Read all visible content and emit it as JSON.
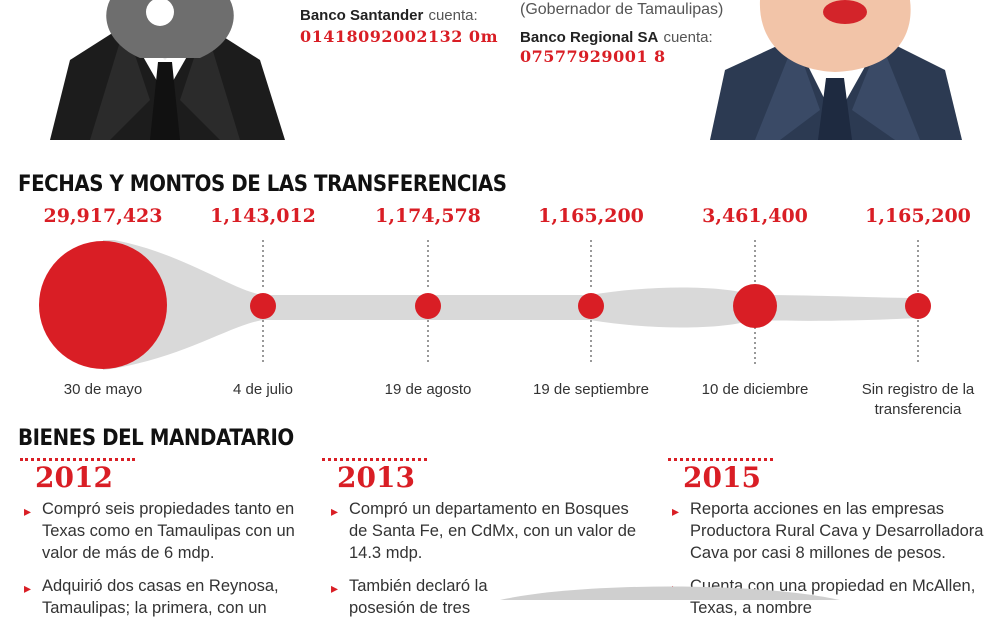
{
  "left_person": {
    "bank_name": "Banco Santander",
    "bank_word": "cuenta:",
    "account": "01418092002132 0m"
  },
  "right_person": {
    "role": "(Gobernador de Tamaulipas)",
    "bank_name": "Banco Regional SA",
    "bank_word": "cuenta:",
    "account": "07577929001 8"
  },
  "transfers": {
    "title": "FECHAS Y MONTOS DE LAS TRANSFERENCIAS",
    "items": [
      {
        "amount": "29,917,423",
        "date": "30 de mayo"
      },
      {
        "amount": "1,143,012",
        "date": "4 de julio"
      },
      {
        "amount": "1,174,578",
        "date": "19 de agosto"
      },
      {
        "amount": "1,165,200",
        "date": "19 de septiembre"
      },
      {
        "amount": "3,461,400",
        "date": "10 de diciembre"
      },
      {
        "amount": "1,165,200",
        "date": "Sin registro de la transferencia"
      }
    ]
  },
  "assets": {
    "title": "BIENES DEL MANDATARIO",
    "columns": [
      {
        "year": "2012",
        "items": [
          "Compró seis propiedades tanto en Texas como en Tamaulipas con un valor de más de 6 mdp.",
          "Adquirió dos casas en Reynosa, Tamaulipas; la primera, con un"
        ]
      },
      {
        "year": "2013",
        "items": [
          "Compró un departamento en Bosques de Santa Fe, en CdMx, con un valor de 14.3 mdp.",
          "También declaró la posesión de tres"
        ]
      },
      {
        "year": "2015",
        "items": [
          "Reporta acciones en las empresas Productora Rural Cava y Desarrolladora Cava por casi 8 millones de pesos.",
          "Cuenta con una propiedad en McAllen, Texas, a nombre"
        ]
      }
    ]
  },
  "colors": {
    "accent": "#d91e25",
    "band": "#d9d9d9"
  }
}
